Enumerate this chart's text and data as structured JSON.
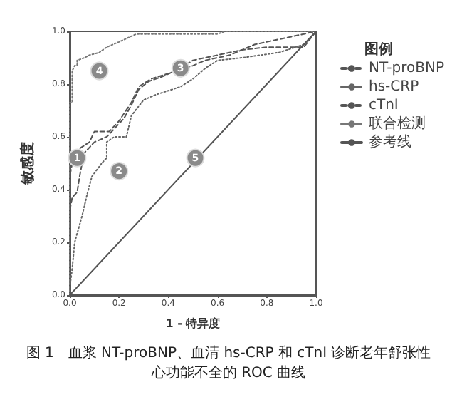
{
  "chart_data": {
    "type": "line",
    "title": "图 1　血浆 NT-proBNP、血清 hs-CRP 和 cTnI 诊断老年舒张性心功能不全的 ROC 曲线",
    "xlabel": "1 - 特异度",
    "ylabel": "敏感度",
    "legend_title": "图例",
    "xlim": [
      0,
      1
    ],
    "ylim": [
      0,
      1
    ],
    "xticks": [
      {
        "value": 0,
        "label": "0.0"
      },
      0.2,
      0.4,
      0.6,
      0.8,
      {
        "value": 1,
        "label": "1.0"
      }
    ],
    "yticks": [
      {
        "value": 0,
        "label": "0.0"
      },
      0.2,
      0.4,
      0.6,
      0.8,
      {
        "value": 1,
        "label": "1.0"
      }
    ],
    "grid": false,
    "legend": "right",
    "marker": "none",
    "series": [
      {
        "name": "NT-proBNP",
        "color": "#555555",
        "line_style": "dashed",
        "x": [
          0,
          0,
          0.01,
          0.03,
          0.04,
          0.05,
          0.06,
          0.1,
          0.15,
          0.18,
          0.22,
          0.25,
          0.28,
          0.32,
          0.38,
          0.45,
          0.5,
          0.6,
          0.7,
          0.8,
          0.95,
          1
        ],
        "values": [
          0,
          0.32,
          0.37,
          0.39,
          0.45,
          0.5,
          0.54,
          0.58,
          0.6,
          0.63,
          0.67,
          0.72,
          0.78,
          0.81,
          0.83,
          0.86,
          0.89,
          0.91,
          0.93,
          0.94,
          0.94,
          1
        ]
      },
      {
        "name": "hs-CRP",
        "color": "#666666",
        "line_style": "dotted",
        "x": [
          0,
          0,
          0.01,
          0.02,
          0.05,
          0.07,
          0.09,
          0.13,
          0.15,
          0.15,
          0.18,
          0.23,
          0.25,
          0.3,
          0.35,
          0.45,
          0.5,
          0.55,
          0.6,
          0.7,
          0.85,
          0.95,
          1
        ],
        "values": [
          0,
          0.03,
          0.1,
          0.2,
          0.3,
          0.38,
          0.45,
          0.5,
          0.52,
          0.58,
          0.6,
          0.6,
          0.68,
          0.74,
          0.76,
          0.79,
          0.82,
          0.86,
          0.89,
          0.9,
          0.92,
          0.95,
          1
        ]
      },
      {
        "name": "cTnI",
        "color": "#555555",
        "line_style": "dashed",
        "x": [
          0,
          0,
          0.01,
          0.03,
          0.08,
          0.1,
          0.16,
          0.2,
          0.25,
          0.28,
          0.33,
          0.4,
          0.5,
          0.55,
          0.65,
          0.75,
          0.85,
          0.9,
          1
        ],
        "values": [
          0,
          0.45,
          0.5,
          0.55,
          0.58,
          0.62,
          0.62,
          0.66,
          0.73,
          0.79,
          0.82,
          0.84,
          0.87,
          0.89,
          0.91,
          0.95,
          0.97,
          0.98,
          1
        ]
      },
      {
        "name": "联合检测",
        "color": "#777777",
        "line_style": "dotted",
        "x": [
          0,
          0,
          0.01,
          0.01,
          0.02,
          0.03,
          0.03,
          0.06,
          0.08,
          0.12,
          0.15,
          0.2,
          0.27,
          0.4,
          0.6,
          0.63,
          1
        ],
        "values": [
          0,
          0.73,
          0.73,
          0.85,
          0.87,
          0.87,
          0.89,
          0.9,
          0.91,
          0.92,
          0.94,
          0.96,
          0.99,
          0.99,
          0.99,
          1,
          1
        ]
      },
      {
        "name": "参考线",
        "color": "#555555",
        "line_style": "solid",
        "x": [
          0,
          1
        ],
        "values": [
          0,
          1
        ]
      }
    ],
    "annotations": [
      {
        "text": "1",
        "x": 0.03,
        "y": 0.52
      },
      {
        "text": "2",
        "x": 0.2,
        "y": 0.47
      },
      {
        "text": "3",
        "x": 0.45,
        "y": 0.86
      },
      {
        "text": "4",
        "x": 0.12,
        "y": 0.85
      },
      {
        "text": "5",
        "x": 0.51,
        "y": 0.52
      }
    ]
  }
}
